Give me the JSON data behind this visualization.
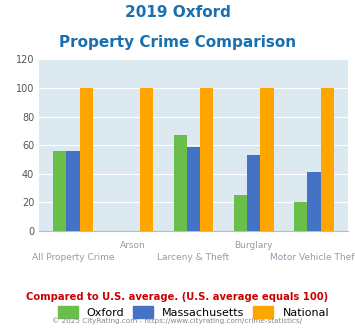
{
  "title_line1": "2019 Oxford",
  "title_line2": "Property Crime Comparison",
  "title_color": "#1a6faf",
  "groups": [
    {
      "oxford": 56,
      "massachusetts": 56,
      "national": 100
    },
    {
      "oxford": 0,
      "massachusetts": 0,
      "national": 100
    },
    {
      "oxford": 67,
      "massachusetts": 59,
      "national": 100
    },
    {
      "oxford": 25,
      "massachusetts": 53,
      "national": 100
    },
    {
      "oxford": 20,
      "massachusetts": 41,
      "national": 100
    }
  ],
  "top_labels": [
    "",
    "Arson",
    "",
    "Burglary",
    ""
  ],
  "bottom_labels": [
    "All Property Crime",
    "",
    "Larceny & Theft",
    "",
    "Motor Vehicle Theft"
  ],
  "oxford_color": "#6abf4b",
  "massachusetts_color": "#4472c4",
  "national_color": "#ffa500",
  "ylim": [
    0,
    120
  ],
  "yticks": [
    0,
    20,
    40,
    60,
    80,
    100,
    120
  ],
  "plot_bg_color": "#dce9f0",
  "footer_text": "Compared to U.S. average. (U.S. average equals 100)",
  "footer_color": "#cc0000",
  "copyright_text": "© 2025 CityRating.com - https://www.cityrating.com/crime-statistics/",
  "copyright_color": "#888888",
  "legend_labels": [
    "Oxford",
    "Massachusetts",
    "National"
  ],
  "label_color": "#9999aa"
}
